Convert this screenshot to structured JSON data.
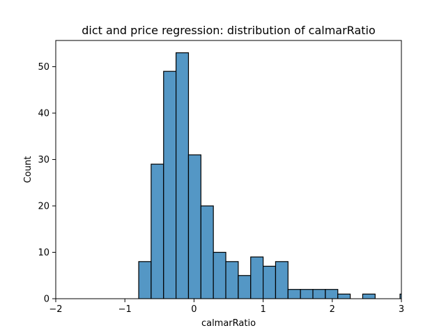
{
  "chart_data": {
    "type": "bar",
    "subtype": "histogram",
    "title": "dict and price regression: distribution of calmarRatio",
    "xlabel": "calmarRatio",
    "ylabel": "Count",
    "xlim": [
      -2,
      3
    ],
    "ylim": [
      0,
      55.65
    ],
    "x_ticks": [
      -2,
      -1,
      0,
      1,
      2,
      3
    ],
    "y_ticks": [
      0,
      10,
      20,
      30,
      40,
      50
    ],
    "bar_color": "#5497c5",
    "edge_color": "#000000",
    "grid": false,
    "bins": [
      {
        "x0": -0.8,
        "x1": -0.62,
        "count": 8
      },
      {
        "x0": -0.62,
        "x1": -0.44,
        "count": 29
      },
      {
        "x0": -0.44,
        "x1": -0.26,
        "count": 49
      },
      {
        "x0": -0.26,
        "x1": -0.08,
        "count": 53
      },
      {
        "x0": -0.08,
        "x1": 0.1,
        "count": 31
      },
      {
        "x0": 0.1,
        "x1": 0.28,
        "count": 20
      },
      {
        "x0": 0.28,
        "x1": 0.46,
        "count": 10
      },
      {
        "x0": 0.46,
        "x1": 0.64,
        "count": 8
      },
      {
        "x0": 0.64,
        "x1": 0.82,
        "count": 5
      },
      {
        "x0": 0.82,
        "x1": 1.0,
        "count": 9
      },
      {
        "x0": 1.0,
        "x1": 1.18,
        "count": 7
      },
      {
        "x0": 1.18,
        "x1": 1.36,
        "count": 8
      },
      {
        "x0": 1.36,
        "x1": 1.54,
        "count": 2
      },
      {
        "x0": 1.54,
        "x1": 1.72,
        "count": 2
      },
      {
        "x0": 1.72,
        "x1": 1.9,
        "count": 2
      },
      {
        "x0": 1.9,
        "x1": 2.08,
        "count": 2
      },
      {
        "x0": 2.08,
        "x1": 2.26,
        "count": 1
      },
      {
        "x0": 2.26,
        "x1": 2.44,
        "count": 0
      },
      {
        "x0": 2.44,
        "x1": 2.62,
        "count": 1
      },
      {
        "x0": 2.62,
        "x1": 2.8,
        "count": 0
      },
      {
        "x0": 2.8,
        "x1": 2.98,
        "count": 0
      },
      {
        "x0": 2.98,
        "x1": 3.16,
        "count": 1
      }
    ]
  }
}
